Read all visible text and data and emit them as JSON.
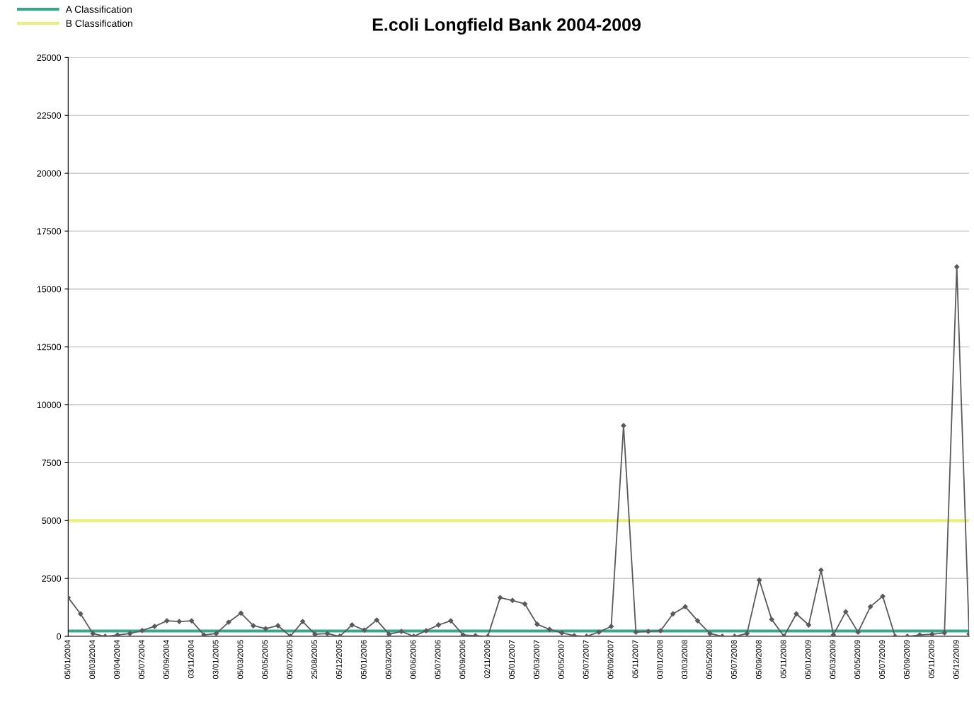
{
  "chart_data": {
    "type": "line",
    "title": "E.coli Longfield Bank 2004-2009",
    "categories": [
      "05/01/2004",
      null,
      "08/03/2004",
      null,
      "09/04/2004",
      null,
      "05/07/2004",
      null,
      "05/09/2004",
      null,
      "03/11/2004",
      null,
      "03/01/2005",
      null,
      "05/03/2005",
      null,
      "05/05/2005",
      null,
      "05/07/2005",
      null,
      "25/08/2005",
      null,
      "05/12/2005",
      null,
      "05/01/2006",
      null,
      "05/03/2006",
      null,
      "06/06/2006",
      null,
      "05/07/2006",
      null,
      "05/09/2006",
      null,
      "02/11/2006",
      null,
      "05/01/2007",
      null,
      "05/03/2007",
      null,
      "05/05/2007",
      null,
      "05/07/2007",
      null,
      "05/09/2007",
      null,
      "05/11/2007",
      null,
      "03/01/2008",
      null,
      "03/03/2008",
      null,
      "05/05/2008",
      null,
      "05/07/2008",
      null,
      "05/09/2008",
      null,
      "05/11/2008",
      null,
      "05/01/2009",
      null,
      "05/03/2009",
      null,
      "05/05/2009",
      null,
      "05/07/2009",
      null,
      "05/09/2009",
      null,
      "05/11/2009",
      null,
      "05/12/2009",
      null
    ],
    "series": [
      {
        "color": "#5a5a5a",
        "values": [
          1670,
          970,
          120,
          0,
          60,
          120,
          250,
          430,
          670,
          640,
          670,
          60,
          120,
          610,
          1000,
          460,
          330,
          460,
          0,
          640,
          90,
          120,
          0,
          490,
          270,
          700,
          90,
          210,
          0,
          240,
          490,
          670,
          60,
          30,
          0,
          1670,
          1550,
          1400,
          520,
          300,
          150,
          30,
          0,
          180,
          430,
          9100,
          180,
          210,
          240,
          970,
          1280,
          670,
          120,
          0,
          0,
          120,
          2430,
          730,
          0,
          970,
          490,
          2860,
          60,
          1060,
          180,
          1280,
          1730,
          0,
          0,
          60,
          90,
          150,
          15960,
          100
        ]
      }
    ],
    "ylim": [
      0,
      25000
    ],
    "yticks": [
      0,
      2500,
      5000,
      7500,
      10000,
      12500,
      15000,
      17500,
      20000,
      22500,
      25000
    ],
    "ref_lines": [
      {
        "axis": "y",
        "value": 230,
        "label": "A Classification",
        "color": "#3aa68a"
      },
      {
        "axis": "y",
        "value": 5000,
        "label": "B Classification",
        "color": "#e8f07c"
      }
    ],
    "grid": "y",
    "legend": "top left",
    "marker": "diamond",
    "line_style": "solid"
  }
}
